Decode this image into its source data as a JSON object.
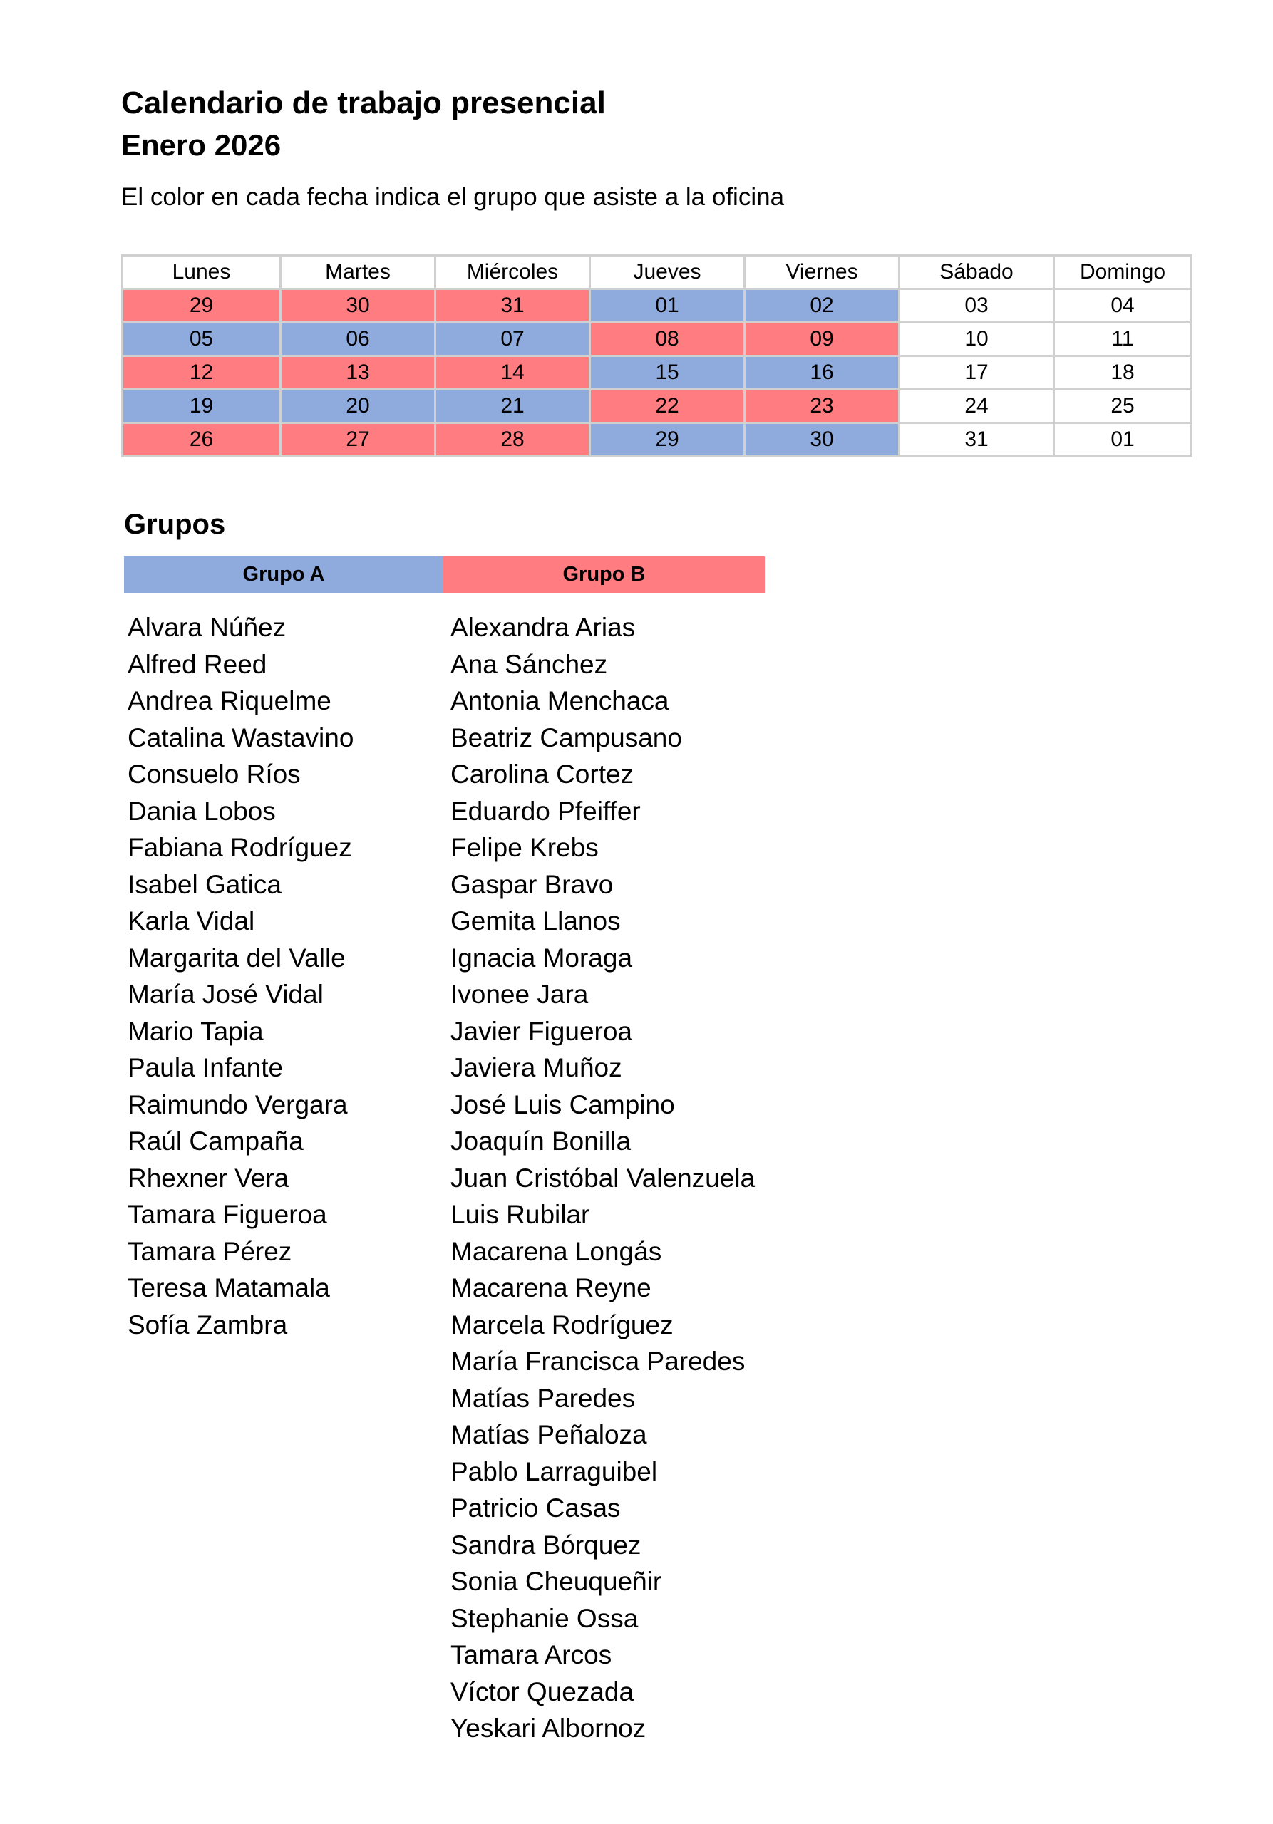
{
  "header": {
    "title": "Calendario de trabajo presencial",
    "subtitle": "Enero 2026",
    "note": "El color en cada fecha indica el grupo que asiste  a la oficina"
  },
  "calendar": {
    "days": [
      "Lunes",
      "Martes",
      "Miércoles",
      "Jueves",
      "Viernes",
      "Sábado",
      "Domingo"
    ],
    "rows": [
      [
        {
          "text": "29",
          "color": "#ff7c80"
        },
        {
          "text": "30",
          "color": "#ff7c80"
        },
        {
          "text": "31",
          "color": "#ff7c80"
        },
        {
          "text": "01",
          "color": "#8faadc"
        },
        {
          "text": "02",
          "color": "#8faadc"
        },
        {
          "text": "03",
          "color": "#ffffff"
        },
        {
          "text": "04",
          "color": "#ffffff"
        }
      ],
      [
        {
          "text": "05",
          "color": "#8faadc"
        },
        {
          "text": "06",
          "color": "#8faadc"
        },
        {
          "text": "07",
          "color": "#8faadc"
        },
        {
          "text": "08",
          "color": "#ff7c80"
        },
        {
          "text": "09",
          "color": "#ff7c80"
        },
        {
          "text": "10",
          "color": "#ffffff"
        },
        {
          "text": "11",
          "color": "#ffffff"
        }
      ],
      [
        {
          "text": "12",
          "color": "#ff7c80"
        },
        {
          "text": "13",
          "color": "#ff7c80"
        },
        {
          "text": "14",
          "color": "#ff7c80"
        },
        {
          "text": "15",
          "color": "#8faadc"
        },
        {
          "text": "16",
          "color": "#8faadc"
        },
        {
          "text": "17",
          "color": "#ffffff"
        },
        {
          "text": "18",
          "color": "#ffffff"
        }
      ],
      [
        {
          "text": "19",
          "color": "#8faadc"
        },
        {
          "text": "20",
          "color": "#8faadc"
        },
        {
          "text": "21",
          "color": "#8faadc"
        },
        {
          "text": "22",
          "color": "#ff7c80"
        },
        {
          "text": "23",
          "color": "#ff7c80"
        },
        {
          "text": "24",
          "color": "#ffffff"
        },
        {
          "text": "25",
          "color": "#ffffff"
        }
      ],
      [
        {
          "text": "26",
          "color": "#ff7c80"
        },
        {
          "text": "27",
          "color": "#ff7c80"
        },
        {
          "text": "28",
          "color": "#ff7c80"
        },
        {
          "text": "29",
          "color": "#8faadc"
        },
        {
          "text": "30",
          "color": "#8faadc"
        },
        {
          "text": "31",
          "color": "#ffffff"
        },
        {
          "text": "01",
          "color": "#ffffff"
        }
      ]
    ]
  },
  "groups_title": "Grupos",
  "groups": [
    {
      "name": "Grupo A",
      "color": "#8faadc",
      "members": [
        "Alvara Núñez",
        "Alfred Reed",
        "Andrea Riquelme",
        "Catalina Wastavino",
        "Consuelo Ríos",
        "Dania Lobos",
        "Fabiana Rodríguez",
        "Isabel Gatica",
        "Karla Vidal",
        "Margarita del Valle",
        "María José Vidal",
        "Mario Tapia",
        "Paula Infante",
        "Raimundo Vergara",
        "Raúl Campaña",
        "Rhexner Vera",
        "Tamara Figueroa",
        "Tamara Pérez",
        "Teresa Matamala",
        "Sofía Zambra"
      ]
    },
    {
      "name": "Grupo B",
      "color": "#ff7c80",
      "members": [
        "Alexandra Arias",
        "Ana Sánchez",
        "Antonia Menchaca",
        "Beatriz Campusano",
        "Carolina Cortez",
        "Eduardo Pfeiffer",
        "Felipe Krebs",
        "Gaspar Bravo",
        "Gemita Llanos",
        "Ignacia Moraga",
        "Ivonee Jara",
        "Javier Figueroa",
        "Javiera Muñoz",
        "José Luis Campino",
        "Joaquín Bonilla",
        "Juan Cristóbal Valenzuela",
        "Luis Rubilar",
        "Macarena Longás",
        "Macarena Reyne",
        "Marcela Rodríguez",
        "María Francisca Paredes",
        "Matías Paredes",
        "Matías Peñaloza",
        "Pablo Larraguibel",
        "Patricio Casas",
        "Sandra Bórquez",
        "Sonia Cheuqueñir",
        "Stephanie Ossa",
        "Tamara Arcos",
        "Víctor Quezada",
        "Yeskari Albornoz"
      ]
    }
  ]
}
